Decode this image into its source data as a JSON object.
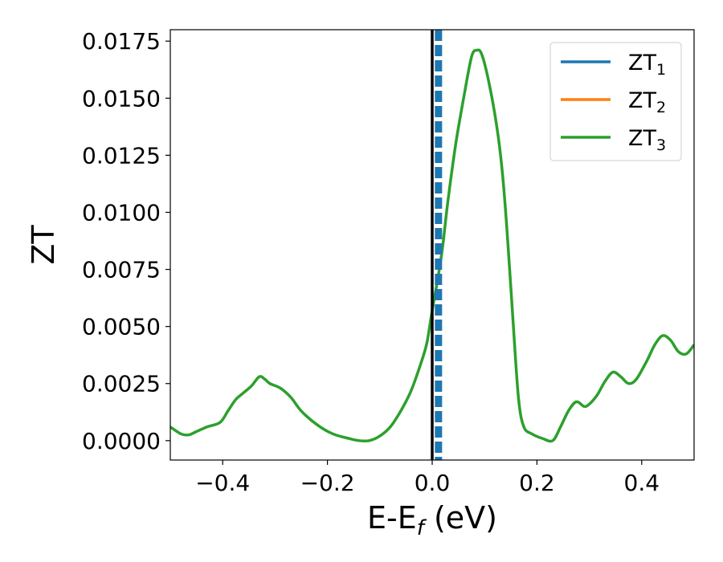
{
  "chart_data": {
    "type": "line",
    "xlabel": "E-E",
    "xlabel_sub": "f",
    "xlabel_unit": " (eV)",
    "ylabel": "ZT",
    "xlim": [
      -0.5,
      0.5
    ],
    "ylim": [
      -0.00085,
      0.018
    ],
    "x_ticks": [
      -0.4,
      -0.2,
      0.0,
      0.2,
      0.4
    ],
    "x_tick_labels": [
      "−0.4",
      "−0.2",
      "0.0",
      "0.2",
      "0.4"
    ],
    "y_ticks": [
      0.0,
      0.0025,
      0.005,
      0.0075,
      0.01,
      0.0125,
      0.015,
      0.0175
    ],
    "y_tick_labels": [
      "0.0000",
      "0.0025",
      "0.0050",
      "0.0075",
      "0.0100",
      "0.0125",
      "0.0150",
      "0.0175"
    ],
    "grid": false,
    "legend_position": "top-right",
    "colors": {
      "ZT1": "#1f77b4",
      "ZT2": "#ff7f0e",
      "ZT3": "#2ca02c",
      "fermi_line": "#000000",
      "dashed_line": "#1f77b4"
    },
    "series": [
      {
        "name": "ZT",
        "sub": "1",
        "color": "#1f77b4"
      },
      {
        "name": "ZT",
        "sub": "2",
        "color": "#ff7f0e"
      },
      {
        "name": "ZT",
        "sub": "3",
        "color": "#2ca02c",
        "x": [
          -0.5,
          -0.48,
          -0.465,
          -0.45,
          -0.43,
          -0.405,
          -0.39,
          -0.375,
          -0.36,
          -0.345,
          -0.33,
          -0.32,
          -0.31,
          -0.29,
          -0.27,
          -0.25,
          -0.22,
          -0.19,
          -0.16,
          -0.14,
          -0.12,
          -0.1,
          -0.08,
          -0.06,
          -0.04,
          -0.02,
          -0.01,
          0.0,
          0.01,
          0.02,
          0.03,
          0.045,
          0.06,
          0.075,
          0.085,
          0.095,
          0.11,
          0.125,
          0.135,
          0.145,
          0.155,
          0.165,
          0.175,
          0.19,
          0.21,
          0.23,
          0.245,
          0.26,
          0.275,
          0.29,
          0.3,
          0.315,
          0.33,
          0.345,
          0.36,
          0.375,
          0.39,
          0.41,
          0.425,
          0.44,
          0.455,
          0.47,
          0.485,
          0.5
        ],
        "y": [
          0.0006,
          0.0003,
          0.00025,
          0.0004,
          0.0006,
          0.0008,
          0.0013,
          0.0018,
          0.0021,
          0.0024,
          0.0028,
          0.0027,
          0.0025,
          0.0023,
          0.0019,
          0.0013,
          0.0007,
          0.0003,
          0.0001,
          0.0,
          0.0,
          0.0002,
          0.0006,
          0.0013,
          0.0022,
          0.0035,
          0.0043,
          0.0057,
          0.007,
          0.0085,
          0.0105,
          0.013,
          0.015,
          0.0168,
          0.0171,
          0.0169,
          0.0155,
          0.0135,
          0.0115,
          0.0085,
          0.005,
          0.0018,
          0.0006,
          0.0003,
          0.0001,
          0.0,
          0.0006,
          0.0013,
          0.0017,
          0.0015,
          0.0016,
          0.002,
          0.0026,
          0.003,
          0.0028,
          0.0025,
          0.0027,
          0.0035,
          0.0042,
          0.0046,
          0.0044,
          0.0039,
          0.0038,
          0.0042
        ]
      }
    ],
    "vlines": [
      {
        "x": 0.0,
        "style": "solid",
        "color": "#000000"
      },
      {
        "x": 0.012,
        "style": "dashed",
        "color": "#1f77b4"
      }
    ]
  }
}
